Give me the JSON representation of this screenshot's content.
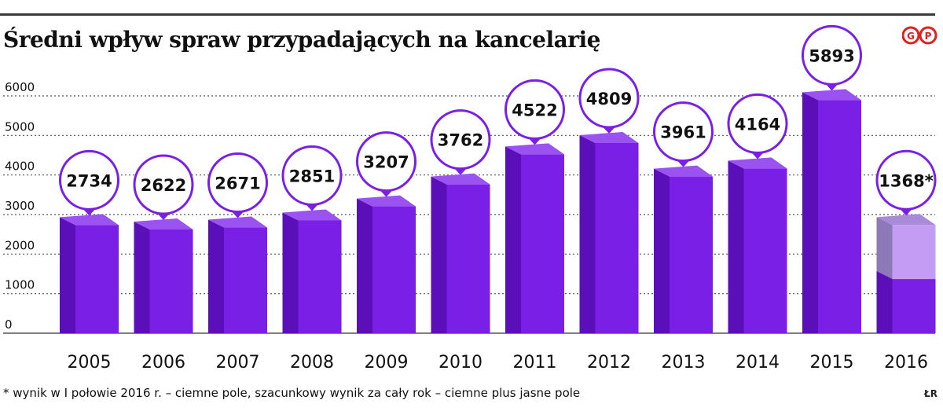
{
  "header": {
    "title": "Średni wpływ spraw przypadających na kancelarię",
    "logo_text": "GP",
    "credit": "ŁR"
  },
  "footnote": "* wynik w I połowie 2016 r. – ciemne pole, szacunkowy wynik za cały rok – ciemne plus jasne pole",
  "colors": {
    "bar_front": "#7a1fe6",
    "bar_side": "#5a0fb8",
    "bar_top": "#9a52f0",
    "estimate_front": "#c49cf4",
    "estimate_side": "#8d78b8",
    "estimate_top": "#a98ad8",
    "marker_stroke": "#7a1fe6",
    "grid": "#555555",
    "logo": "#e02020"
  },
  "chart_data": {
    "type": "bar",
    "title": "Średni wpływ spraw przypadających na kancelarię",
    "xlabel": "",
    "ylabel": "",
    "ylim": [
      0,
      6000
    ],
    "yticks": [
      0,
      1000,
      2000,
      3000,
      4000,
      5000,
      6000
    ],
    "grid": true,
    "categories": [
      "2005",
      "2006",
      "2007",
      "2008",
      "2009",
      "2010",
      "2011",
      "2012",
      "2013",
      "2014",
      "2015",
      "2016"
    ],
    "values": [
      2734,
      2622,
      2671,
      2851,
      3207,
      3762,
      4522,
      4809,
      3961,
      4164,
      5893,
      1368
    ],
    "value_labels": [
      "2734",
      "2622",
      "2671",
      "2851",
      "3207",
      "3762",
      "4522",
      "4809",
      "3961",
      "4164",
      "5893",
      "1368*"
    ],
    "estimate": {
      "category": "2016",
      "full_year_value": 2736
    }
  }
}
